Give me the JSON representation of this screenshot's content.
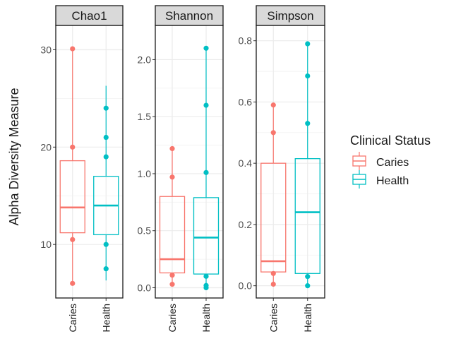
{
  "chart_data": {
    "type": "boxplot",
    "ylabel": "Alpha Diversity Measure",
    "legend": {
      "title": "Clinical Status",
      "position": "right",
      "entries": [
        {
          "label": "Caries",
          "color": "#F8766D"
        },
        {
          "label": "Health",
          "color": "#00BFC4"
        }
      ]
    },
    "categories": [
      "Caries",
      "Health"
    ],
    "colors": {
      "Caries": "#F8766D",
      "Health": "#00BFC4"
    },
    "grid": true,
    "panels": [
      {
        "title": "Chao1",
        "ylim": [
          4.5,
          32.5
        ],
        "yticks": [
          10,
          20,
          30
        ],
        "boxes": [
          {
            "group": "Caries",
            "min": 5.8,
            "q1": 11.2,
            "median": 13.8,
            "q3": 18.6,
            "max": 30.1,
            "points": [
              6.0,
              10.5,
              20.0,
              30.1
            ]
          },
          {
            "group": "Health",
            "min": 6.3,
            "q1": 11.0,
            "median": 14.0,
            "q3": 17.0,
            "max": 26.3,
            "points": [
              7.5,
              10.0,
              19.0,
              21.0,
              24.0
            ]
          }
        ]
      },
      {
        "title": "Shannon",
        "ylim": [
          -0.09,
          2.3
        ],
        "yticks": [
          0.0,
          0.5,
          1.0,
          1.5,
          2.0
        ],
        "boxes": [
          {
            "group": "Caries",
            "min": 0.02,
            "q1": 0.13,
            "median": 0.25,
            "q3": 0.8,
            "max": 1.22,
            "points": [
              0.03,
              0.11,
              0.97,
              1.22
            ]
          },
          {
            "group": "Health",
            "min": 0.0,
            "q1": 0.12,
            "median": 0.44,
            "q3": 0.79,
            "max": 2.1,
            "points": [
              0.0,
              0.02,
              0.1,
              1.01,
              1.6,
              2.1
            ]
          }
        ]
      },
      {
        "title": "Simpson",
        "ylim": [
          -0.04,
          0.85
        ],
        "yticks": [
          0.0,
          0.2,
          0.4,
          0.6,
          0.8
        ],
        "boxes": [
          {
            "group": "Caries",
            "min": 0.005,
            "q1": 0.045,
            "median": 0.08,
            "q3": 0.4,
            "max": 0.59,
            "points": [
              0.005,
              0.04,
              0.5,
              0.59
            ]
          },
          {
            "group": "Health",
            "min": 0.0,
            "q1": 0.04,
            "median": 0.24,
            "q3": 0.415,
            "max": 0.79,
            "points": [
              0.0,
              0.03,
              0.53,
              0.685,
              0.79
            ]
          }
        ]
      }
    ]
  }
}
